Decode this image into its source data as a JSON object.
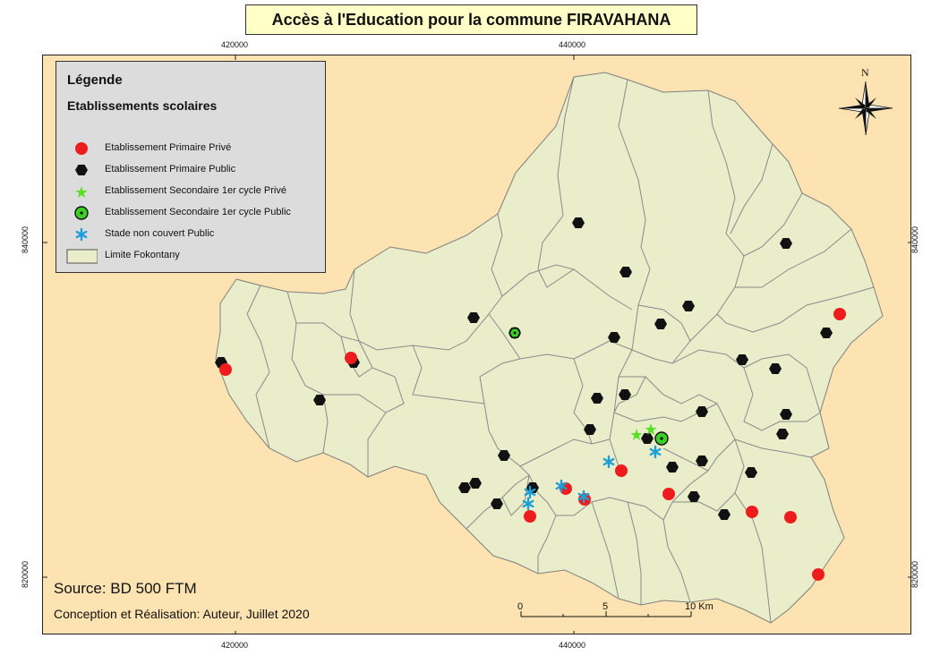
{
  "title": "Accès à l'Education pour la commune FIRAVAHANA",
  "coords": {
    "top": [
      "420000",
      "440000"
    ],
    "bottom": [
      "420000",
      "440000"
    ],
    "left": [
      "840000",
      "820000"
    ],
    "right": [
      "840000",
      "820000"
    ]
  },
  "legend": {
    "title": "Légende",
    "subtitle": "Etablissements scolaires",
    "items": [
      {
        "label": "Etablissement Primaire Privé",
        "symbol": "red-circle",
        "color": "#ee1c1c"
      },
      {
        "label": "Etablissement Primaire Public",
        "symbol": "black-hexagon",
        "color": "#111111"
      },
      {
        "label": "Etablissement Secondaire 1er cycle Privé",
        "symbol": "green-star",
        "color": "#55e024"
      },
      {
        "label": "Etablissement Secondaire 1er cycle Public",
        "symbol": "green-circle-dot",
        "color": "#3cd024"
      },
      {
        "label": "Stade non couvert Public",
        "symbol": "blue-asterisk",
        "color": "#1c9fd8"
      },
      {
        "label": "Limite Fokontany",
        "symbol": "polygon-fill",
        "color": "#eaedca"
      }
    ]
  },
  "north_arrow": {
    "label": "N",
    "icon": "compass-rose-icon"
  },
  "scale_bar": {
    "labels": [
      "0",
      "5",
      "10 Km"
    ]
  },
  "source": "Source: BD 500 FTM",
  "credit": "Conception et Réalisation: Auteur, Juillet 2020",
  "colors": {
    "background": "#fde3b1",
    "commune_fill": "#eaedca",
    "boundary": "#7f7f7f",
    "title_box": "#ffffc8"
  }
}
